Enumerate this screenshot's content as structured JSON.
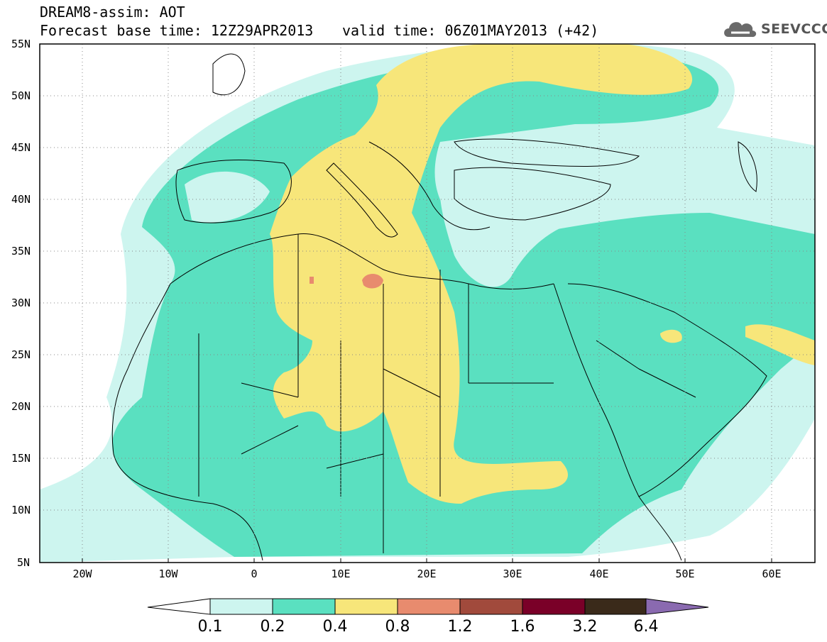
{
  "header": {
    "title": "DREAM8-assim: AOT",
    "base_time": "Forecast base time: 12Z29APR2013",
    "valid_time": "valid time: 06Z01MAY2013 (+42)"
  },
  "logo": {
    "text": "SEEVCCC",
    "icon": "cloud-icon"
  },
  "map": {
    "variable": "AOT",
    "lat_labels": [
      "55N",
      "50N",
      "45N",
      "40N",
      "35N",
      "30N",
      "25N",
      "20N",
      "15N",
      "10N",
      "5N"
    ],
    "lon_labels": [
      "20W",
      "10W",
      "0",
      "10E",
      "20E",
      "30E",
      "40E",
      "50E",
      "60E"
    ],
    "colors": {
      "c1": "#cdf5ef",
      "c2": "#5ae0c0",
      "c3": "#f7e67a",
      "c4": "#e88b6e",
      "ocean": "#ffffff",
      "border": "#000000"
    }
  },
  "colorbar": {
    "labels": [
      "0.1",
      "0.2",
      "0.4",
      "0.8",
      "1.2",
      "1.6",
      "3.2",
      "6.4"
    ],
    "colors": [
      "#cdf5ef",
      "#5ae0c0",
      "#f7e67a",
      "#e88b6e",
      "#a14a3c",
      "#7a0028",
      "#3a2a1a"
    ],
    "under_color": "#ffffff",
    "over_color": "#8a6ab0"
  }
}
